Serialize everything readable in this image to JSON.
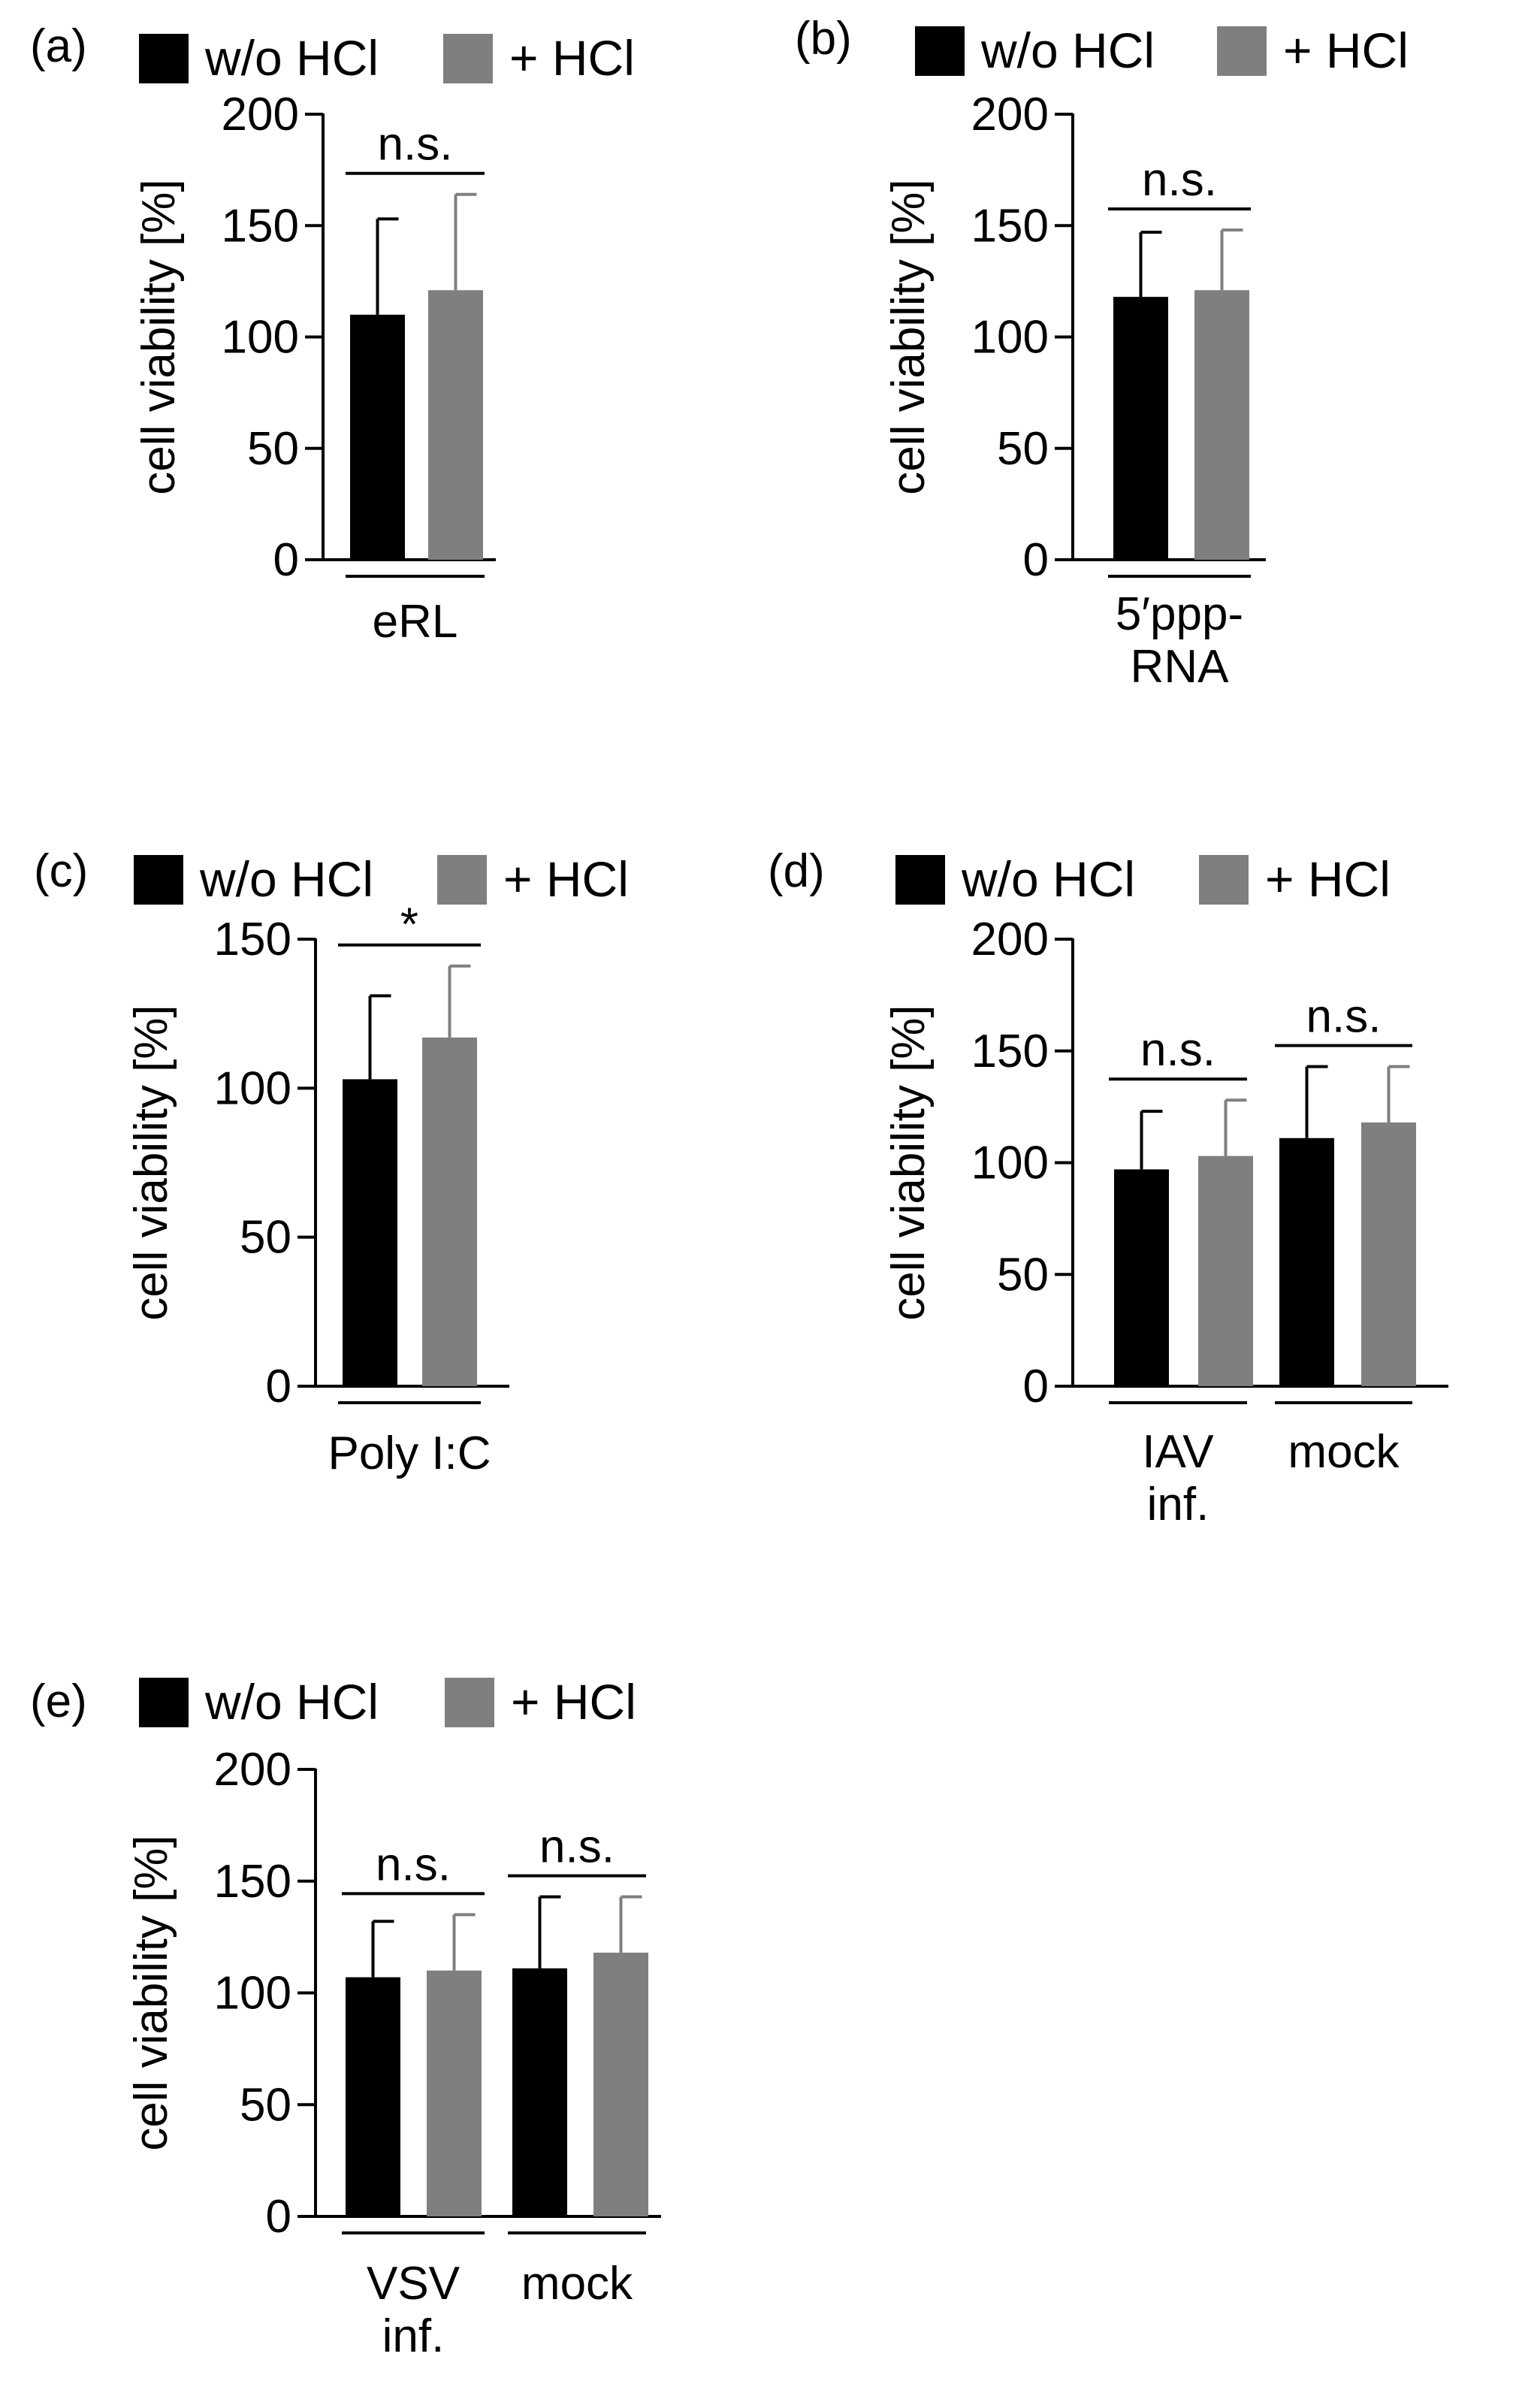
{
  "figure": {
    "legend": [
      {
        "name": "w/o HCl",
        "color": "#000000"
      },
      {
        "name": "+ HCl",
        "color": "#7f7f7f"
      }
    ]
  },
  "chart_data": [
    {
      "panel": "(a)",
      "type": "bar",
      "ylabel": "cell viability [%]",
      "ylim": [
        0,
        200
      ],
      "yticks": [
        "0",
        "50",
        "100",
        "150",
        "200"
      ],
      "groups": [
        {
          "label_lines": [
            "eRL"
          ],
          "series": [
            {
              "name": "w/o HCl",
              "value": 110,
              "error": 43
            },
            {
              "name": "+ HCl",
              "value": 121,
              "error": 43
            }
          ],
          "significance": "n.s."
        }
      ]
    },
    {
      "panel": "(b)",
      "type": "bar",
      "ylabel": "cell viability [%]",
      "ylim": [
        0,
        200
      ],
      "yticks": [
        "0",
        "50",
        "100",
        "150",
        "200"
      ],
      "groups": [
        {
          "label_lines": [
            "5′ppp-",
            "RNA"
          ],
          "series": [
            {
              "name": "w/o HCl",
              "value": 118,
              "error": 29
            },
            {
              "name": "+ HCl",
              "value": 121,
              "error": 27
            }
          ],
          "significance": "n.s."
        }
      ]
    },
    {
      "panel": "(c)",
      "type": "bar",
      "ylabel": "cell viability [%]",
      "ylim": [
        0,
        150
      ],
      "yticks": [
        "0",
        "50",
        "100",
        "150"
      ],
      "groups": [
        {
          "label_lines": [
            "Poly I:C"
          ],
          "series": [
            {
              "name": "w/o HCl",
              "value": 103,
              "error": 28
            },
            {
              "name": "+ HCl",
              "value": 117,
              "error": 24
            }
          ],
          "significance": "*"
        }
      ]
    },
    {
      "panel": "(d)",
      "type": "bar",
      "ylabel": "cell viability [%]",
      "ylim": [
        0,
        200
      ],
      "yticks": [
        "0",
        "50",
        "100",
        "150",
        "200"
      ],
      "groups": [
        {
          "label_lines": [
            "IAV",
            "inf."
          ],
          "series": [
            {
              "name": "w/o HCl",
              "value": 97,
              "error": 26
            },
            {
              "name": "+ HCl",
              "value": 103,
              "error": 25
            }
          ],
          "significance": "n.s."
        },
        {
          "label_lines": [
            "mock"
          ],
          "series": [
            {
              "name": "w/o HCl",
              "value": 111,
              "error": 32
            },
            {
              "name": "+ HCl",
              "value": 118,
              "error": 25
            }
          ],
          "significance": "n.s."
        }
      ]
    },
    {
      "panel": "(e)",
      "type": "bar",
      "ylabel": "cell viability [%]",
      "ylim": [
        0,
        200
      ],
      "yticks": [
        "0",
        "50",
        "100",
        "150",
        "200"
      ],
      "groups": [
        {
          "label_lines": [
            "VSV",
            "inf."
          ],
          "series": [
            {
              "name": "w/o HCl",
              "value": 107,
              "error": 25
            },
            {
              "name": "+ HCl",
              "value": 110,
              "error": 25
            }
          ],
          "significance": "n.s."
        },
        {
          "label_lines": [
            "mock"
          ],
          "series": [
            {
              "name": "w/o HCl",
              "value": 111,
              "error": 32
            },
            {
              "name": "+ HCl",
              "value": 118,
              "error": 25
            }
          ],
          "significance": "n.s."
        }
      ]
    }
  ]
}
